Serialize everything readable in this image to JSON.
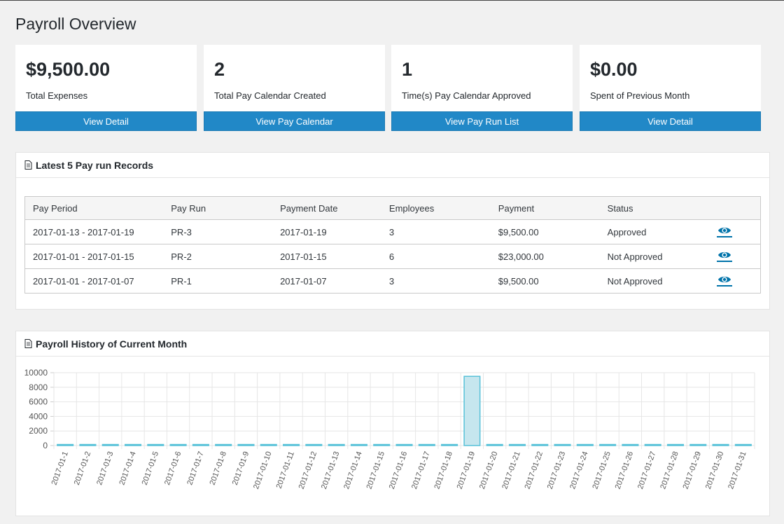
{
  "page": {
    "title": "Payroll Overview"
  },
  "cards": [
    {
      "value": "$9,500.00",
      "label": "Total Expenses",
      "button": "View Detail"
    },
    {
      "value": "2",
      "label": "Total Pay Calendar Created",
      "button": "View Pay Calendar"
    },
    {
      "value": "1",
      "label": "Time(s) Pay Calendar Approved",
      "button": "View Pay Run List"
    },
    {
      "value": "$0.00",
      "label": "Spent of Previous Month",
      "button": "View Detail"
    }
  ],
  "records": {
    "title": "Latest 5 Pay run Records",
    "headers": [
      "Pay Period",
      "Pay Run",
      "Payment Date",
      "Employees",
      "Payment",
      "Status"
    ],
    "rows": [
      {
        "period": "2017-01-13 - 2017-01-19",
        "run": "PR-3",
        "date": "2017-01-19",
        "employees": "3",
        "payment": "$9,500.00",
        "status": "Approved"
      },
      {
        "period": "2017-01-01 - 2017-01-15",
        "run": "PR-2",
        "date": "2017-01-15",
        "employees": "6",
        "payment": "$23,000.00",
        "status": "Not Approved"
      },
      {
        "period": "2017-01-01 - 2017-01-07",
        "run": "PR-1",
        "date": "2017-01-07",
        "employees": "3",
        "payment": "$9,500.00",
        "status": "Not Approved"
      }
    ]
  },
  "history": {
    "title": "Payroll History of Current Month"
  },
  "colors": {
    "accent": "#2188c7",
    "link": "#0073aa",
    "bar_fill": "#c6e6ee",
    "bar_stroke": "#56c1d8"
  },
  "icons": {
    "panel": "document-icon",
    "view": "eye-icon"
  },
  "chart_data": {
    "type": "bar",
    "categories": [
      "2017-01-1",
      "2017-01-2",
      "2017-01-3",
      "2017-01-4",
      "2017-01-5",
      "2017-01-6",
      "2017-01-7",
      "2017-01-8",
      "2017-01-9",
      "2017-01-10",
      "2017-01-11",
      "2017-01-12",
      "2017-01-13",
      "2017-01-14",
      "2017-01-15",
      "2017-01-16",
      "2017-01-17",
      "2017-01-18",
      "2017-01-19",
      "2017-01-20",
      "2017-01-21",
      "2017-01-22",
      "2017-01-23",
      "2017-01-24",
      "2017-01-25",
      "2017-01-26",
      "2017-01-27",
      "2017-01-28",
      "2017-01-29",
      "2017-01-30",
      "2017-01-31"
    ],
    "values": [
      0,
      0,
      0,
      0,
      0,
      0,
      0,
      0,
      0,
      0,
      0,
      0,
      0,
      0,
      0,
      0,
      0,
      0,
      9500,
      0,
      0,
      0,
      0,
      0,
      0,
      0,
      0,
      0,
      0,
      0,
      0
    ],
    "yticks": [
      0,
      2000,
      4000,
      6000,
      8000,
      10000
    ],
    "ylim": [
      0,
      10000
    ],
    "grid": true,
    "legend": "none"
  }
}
